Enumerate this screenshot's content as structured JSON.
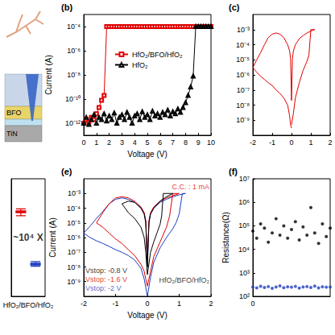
{
  "device_diagram": {
    "layer_labels": [
      "BFO",
      "TiN"
    ]
  },
  "chart_data": [
    {
      "title": "(b)",
      "type": "line",
      "log": "y",
      "grid": false,
      "legend": "left",
      "x_label": "Voltage (V)",
      "y_label": "Current (A)",
      "xlim": [
        0,
        10
      ],
      "xticks": [
        0,
        1,
        2,
        3,
        4,
        5,
        6,
        7,
        8,
        9,
        10
      ],
      "ylim": [
        1e-13,
        0.001
      ],
      "yticks": [
        {
          "value": 1e-12,
          "label": "10⁻¹²"
        },
        {
          "value": 1e-10,
          "label": "10⁻¹⁰"
        },
        {
          "value": 1e-08,
          "label": "10⁻⁸"
        },
        {
          "value": 1e-06,
          "label": "10⁻⁶"
        },
        {
          "value": 0.0001,
          "label": "10⁻⁴"
        }
      ],
      "x": [
        0,
        0.2,
        0.4,
        0.6,
        0.8,
        1,
        1.2,
        1.4,
        1.6,
        1.8,
        2,
        2.2,
        2.4,
        2.6,
        2.8,
        3,
        3.2,
        3.4,
        3.6,
        3.8,
        4,
        4.2,
        4.4,
        4.6,
        4.8,
        5,
        5.2,
        5.4,
        5.6,
        5.8,
        6,
        6.2,
        6.4,
        6.6,
        6.8,
        7,
        7.2,
        7.4,
        7.6,
        7.8,
        8,
        8.2,
        8.4,
        8.6,
        8.8,
        9,
        9.2,
        9.4,
        9.6,
        9.8,
        10
      ],
      "series": [
        {
          "name": "HfO₂/BFO/HfO₂",
          "color": "#e00000",
          "marker": "square",
          "values": [
            1e-12,
            2e-12,
            1.2e-12,
            3e-12,
            2e-12,
            6e-12,
            2e-11,
            8e-11,
            2e-10,
            0.0001,
            0.0001,
            0.0001,
            0.0001,
            0.0001,
            0.0001,
            0.0001,
            0.0001,
            0.0001,
            0.0001,
            0.0001,
            0.0001,
            0.0001,
            0.0001,
            0.0001,
            0.0001,
            0.0001,
            0.0001,
            0.0001,
            0.0001,
            0.0001,
            0.0001,
            0.0001,
            0.0001,
            0.0001,
            0.0001,
            0.0001,
            0.0001,
            0.0001,
            0.0001,
            0.0001,
            0.0001,
            0.0001,
            0.0001,
            0.0001,
            0.0001,
            0.0001,
            0.0001,
            0.0001,
            0.0001,
            0.0001,
            0.0001
          ]
        },
        {
          "name": "HfO₂",
          "color": "#000000",
          "marker": "triangle",
          "values": [
            1e-12,
            3e-12,
            8e-13,
            2e-12,
            5e-12,
            1e-12,
            3e-12,
            2e-12,
            6e-12,
            1.5e-12,
            4e-12,
            2e-12,
            7e-12,
            1e-12,
            3e-12,
            5e-12,
            2e-12,
            8e-12,
            3e-12,
            1e-12,
            4e-12,
            6e-12,
            2e-12,
            9e-12,
            3e-12,
            5e-12,
            2e-12,
            1e-11,
            4e-12,
            6e-12,
            3e-12,
            8e-12,
            5e-12,
            1.2e-11,
            4e-12,
            9e-12,
            6e-12,
            1.5e-11,
            8e-12,
            2e-11,
            5e-11,
            2e-10,
            1e-09,
            8e-09,
            0.0001,
            0.0001,
            0.0001,
            0.0001,
            0.0001,
            0.0001,
            0.0001
          ]
        }
      ]
    },
    {
      "title": "(c)",
      "type": "line",
      "log": "y",
      "grid": false,
      "xlim": [
        -2,
        2
      ],
      "xticks": [
        -2,
        -1,
        0,
        1,
        2
      ],
      "ylim": [
        1e-10,
        0.01
      ],
      "yticks": [
        {
          "value": 1e-09,
          "label": "10⁻⁹"
        },
        {
          "value": 1e-08,
          "label": "10⁻⁸"
        },
        {
          "value": 1e-07,
          "label": "10⁻⁷"
        },
        {
          "value": 1e-06,
          "label": "10⁻⁶"
        },
        {
          "value": 1e-05,
          "label": "10⁻⁵"
        },
        {
          "value": 0.0001,
          "label": "10⁻⁴"
        },
        {
          "value": 0.001,
          "label": "10⁻³"
        }
      ],
      "series": [
        {
          "color": "#e00000",
          "x": [
            0,
            0.1,
            0.2,
            0.4,
            0.6,
            0.8,
            0.9,
            1.0,
            1.2,
            1.0,
            0.8,
            0.6,
            0.4,
            0.2,
            0.1,
            0.05,
            0,
            -0.05,
            -0.1,
            -0.2,
            -0.4,
            -0.6,
            -0.8,
            -1.0,
            -1.2,
            -1.4,
            -1.6,
            -1.8,
            -2.0,
            -1.8,
            -1.6,
            -1.4,
            -1.2,
            -1.0,
            -0.8,
            -0.6,
            -0.4,
            -0.2,
            -0.1,
            -0.05,
            0
          ],
          "values": [
            5e-10,
            3e-09,
            3e-08,
            3e-07,
            2e-06,
            8e-06,
            2e-05,
            0.001,
            0.001,
            0.0008,
            0.0006,
            0.0004,
            0.00025,
            0.0001,
            4e-05,
            1.2e-05,
            2e-08,
            1.2e-05,
            4e-05,
            0.0001,
            0.0003,
            0.0005,
            0.0006,
            0.0005,
            0.0003,
            0.0001,
            3e-05,
            1e-05,
            3e-06,
            1.5e-06,
            8e-07,
            5e-07,
            3e-07,
            2e-07,
            1e-07,
            6e-08,
            3e-08,
            1e-08,
            2e-09,
            5e-10,
            3e-10
          ]
        }
      ]
    },
    {
      "type": "box",
      "log": "y",
      "grid": false,
      "tick_labels": "x",
      "categories": [
        "HfO₂/BFO/HfO₂"
      ],
      "ylim": [
        1,
        1000000000.0
      ],
      "series": [
        {
          "color": "#e00000",
          "values": [
            [
              1500000.0,
              2500000.0,
              3000000.0,
              3500000.0,
              5000000.0
            ]
          ]
        },
        {
          "color": "#1f3fbf",
          "values": [
            [
              200,
              250,
              300,
              350,
              450
            ]
          ]
        }
      ],
      "annotations": [
        {
          "text": "~10⁴ X",
          "x": "HfO₂/BFO/HfO₂",
          "y": 30000,
          "color": "#000000"
        }
      ]
    },
    {
      "title": "(e)",
      "type": "line",
      "log": "y",
      "grid": false,
      "x_label": "Voltage (V)",
      "y_label": "Current (A)",
      "xlim": [
        -2,
        2
      ],
      "xticks": [
        -2,
        -1,
        0,
        1,
        2
      ],
      "ylim": [
        1e-10,
        0.01
      ],
      "yticks": [
        {
          "value": 1e-09,
          "label": "10⁻⁹"
        },
        {
          "value": 1e-08,
          "label": "10⁻⁸"
        },
        {
          "value": 1e-07,
          "label": "10⁻⁷"
        },
        {
          "value": 1e-06,
          "label": "10⁻⁶"
        },
        {
          "value": 1e-05,
          "label": "10⁻⁵"
        },
        {
          "value": 0.0001,
          "label": "10⁻⁴"
        },
        {
          "value": 0.001,
          "label": "10⁻³"
        }
      ],
      "series": [
        {
          "color": "#1f3fbf",
          "x": [
            0,
            0.1,
            0.2,
            0.4,
            0.6,
            0.8,
            0.9,
            1.0,
            1.1,
            1.2,
            1.0,
            0.8,
            0.6,
            0.4,
            0.2,
            0.1,
            0.05,
            0,
            -0.05,
            -0.1,
            -0.2,
            -0.4,
            -0.6,
            -0.8,
            -1.0,
            -1.2,
            -1.4,
            -1.6,
            -1.8,
            -2.0,
            -1.8,
            -1.6,
            -1.4,
            -1.2,
            -1.0,
            -0.8,
            -0.6,
            -0.4,
            -0.2,
            -0.1,
            -0.05,
            0
          ],
          "values": [
            1e-10,
            2e-09,
            2e-08,
            2e-07,
            1e-06,
            4e-06,
            1e-05,
            4e-05,
            0.001,
            0.001,
            0.0008,
            0.0006,
            0.0004,
            0.00025,
            0.0001,
            4e-05,
            1.2e-05,
            1e-08,
            1.2e-05,
            4e-05,
            0.0001,
            0.00025,
            0.0004,
            0.0005,
            0.0004,
            0.0002,
            6e-05,
            2e-05,
            6e-06,
            2e-06,
            1e-06,
            6e-07,
            4e-07,
            2.5e-07,
            1.5e-07,
            1e-07,
            6e-08,
            3e-08,
            8e-09,
            1.5e-09,
            4e-10,
            1e-10
          ]
        },
        {
          "color": "#e00000",
          "x": [
            0,
            0.1,
            0.2,
            0.4,
            0.6,
            0.7,
            0.8,
            1.0,
            0.8,
            0.6,
            0.4,
            0.2,
            0.1,
            0.05,
            0,
            -0.05,
            -0.1,
            -0.2,
            -0.4,
            -0.6,
            -0.8,
            -1.0,
            -1.2,
            -1.4,
            -1.6,
            -1.4,
            -1.2,
            -1.0,
            -0.8,
            -0.6,
            -0.4,
            -0.2,
            -0.1,
            -0.05,
            0
          ],
          "values": [
            5e-10,
            5e-09,
            5e-08,
            5e-07,
            5e-06,
            3e-05,
            0.001,
            0.001,
            0.0007,
            0.0005,
            0.0003,
            0.00012,
            5e-05,
            1.5e-05,
            3e-08,
            1.5e-05,
            5e-05,
            0.00012,
            0.0003,
            0.0005,
            0.0006,
            0.0005,
            0.0002,
            5e-05,
            1e-05,
            5e-06,
            2e-06,
            8e-07,
            4e-07,
            1.5e-07,
            6e-08,
            1.5e-08,
            5e-09,
            1.5e-09,
            5e-10
          ]
        },
        {
          "color": "#000000",
          "x": [
            0,
            0.1,
            0.2,
            0.3,
            0.4,
            0.45,
            0.5,
            0.8,
            0.6,
            0.4,
            0.2,
            0.1,
            0.05,
            0,
            -0.05,
            -0.1,
            -0.2,
            -0.4,
            -0.6,
            -0.8,
            -0.6,
            -0.4,
            -0.2,
            -0.1,
            -0.05,
            0
          ],
          "values": [
            3e-09,
            1e-07,
            5e-07,
            2e-06,
            8e-06,
            3e-05,
            0.001,
            0.001,
            0.0006,
            0.0003,
            0.0001,
            4e-05,
            1e-05,
            1e-08,
            1e-05,
            4e-05,
            0.0001,
            0.00025,
            0.0003,
            0.0002,
            5e-05,
            2e-05,
            5e-06,
            1e-06,
            1e-07,
            3e-09
          ]
        }
      ],
      "annotations": [
        {
          "text": "C.C. : 1 mA",
          "x": 1.95,
          "y": 0.003,
          "color": "#e00000"
        },
        {
          "text": "Vstop: -0.8 V",
          "x": -1.95,
          "y": 5.6e-09,
          "color": "#000000"
        },
        {
          "text": "Vstop: -1.6 V",
          "x": -1.95,
          "y": 1.4e-09,
          "color": "#e00000"
        },
        {
          "text": "Vstop: -2 V",
          "x": -1.95,
          "y": 3.5e-10,
          "color": "#1f3fbf"
        },
        {
          "text": "HfO₂/BFO/HfO₂",
          "x": 1.95,
          "y": 1.3e-09,
          "color": "#000000"
        }
      ]
    },
    {
      "title": "(f)",
      "type": "scatter",
      "log": "y",
      "grid": false,
      "y_label": "Resistance(Ω)",
      "xlim": [
        0,
        100
      ],
      "xticks": [
        0
      ],
      "ylim": [
        100,
        10000000.0
      ],
      "yticks": [
        {
          "value": 100,
          "label": "10²"
        },
        {
          "value": 1000,
          "label": "10³"
        },
        {
          "value": 10000,
          "label": "10⁴"
        },
        {
          "value": 100000,
          "label": "10⁵"
        },
        {
          "value": 1000000,
          "label": "10⁶"
        },
        {
          "value": 10000000,
          "label": "10⁷"
        }
      ],
      "x": [
        0,
        5,
        10,
        15,
        20,
        25,
        30,
        35,
        40,
        45,
        50,
        55,
        60,
        65,
        70,
        75,
        80,
        85,
        90,
        95,
        100
      ],
      "series": [
        {
          "color": "#000000",
          "marker": "circle",
          "values": [
            60000.0,
            30000.0,
            120000.0,
            80000.0,
            20000.0,
            50000.0,
            200000.0,
            40000.0,
            100000.0,
            30000.0,
            70000.0,
            150000.0,
            25000.0,
            90000.0,
            40000.0,
            600000.0,
            50000.0,
            18000.0,
            120000.0,
            35000.0,
            80000.0
          ]
        },
        {
          "color": "#1f3fbf",
          "marker": "circle",
          "values": [
            250,
            230,
            270,
            240,
            260,
            220,
            250,
            280,
            235,
            255,
            245,
            265,
            225,
            250,
            260,
            240,
            275,
            230,
            255,
            245,
            250
          ]
        }
      ]
    }
  ]
}
